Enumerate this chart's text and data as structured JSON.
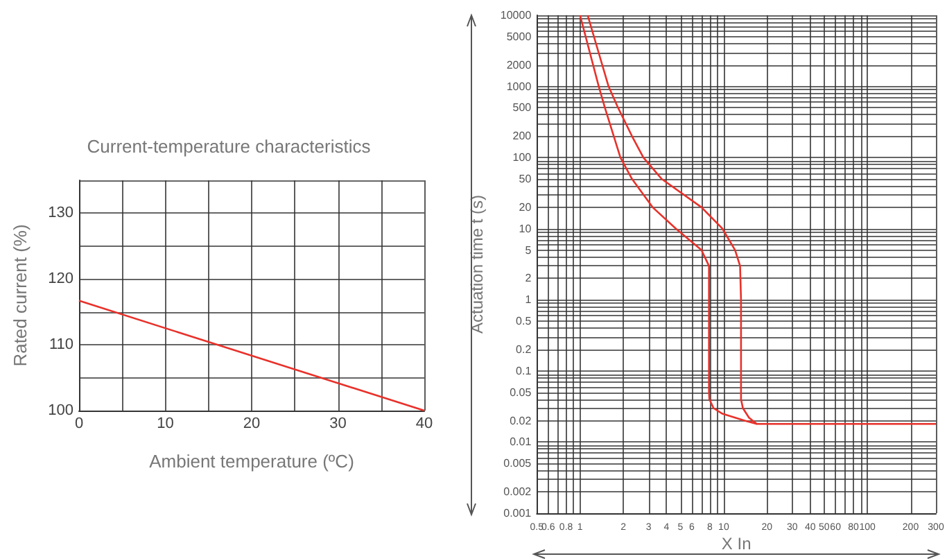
{
  "chart_data": [
    {
      "type": "line",
      "title": "Current-temperature characteristics",
      "xlabel": "Ambient temperature (ºC)",
      "ylabel": "Rated current (%)",
      "series": [
        {
          "color": "#e8312a",
          "x": [
            0,
            40
          ],
          "values": [
            116.7,
            100
          ]
        }
      ],
      "xlim": [
        0,
        40
      ],
      "xticks": [
        0,
        {
          "value": 5,
          "label": null
        },
        10,
        {
          "value": 15,
          "label": null
        },
        20,
        {
          "value": 25,
          "label": null
        },
        30,
        {
          "value": 35,
          "label": null
        },
        40
      ],
      "ylim": [
        100,
        135
      ],
      "yticks": [
        100,
        {
          "value": 105,
          "label": null
        },
        110,
        {
          "value": 115,
          "label": null
        },
        120,
        {
          "value": 125,
          "label": null
        },
        130,
        {
          "value": 135,
          "label": null
        }
      ],
      "grid": true
    },
    {
      "type": "line",
      "xlabel": "X In",
      "ylabel": "Actuation time t (s)",
      "log": "xy",
      "series": [
        {
          "color": "#e8312a",
          "x": [
            1.0,
            1.35,
            1.49,
            1.91,
            2.3,
            3.2,
            4.65,
            7.0,
            7.9,
            7.9,
            7.95,
            8.5,
            9.8,
            14,
            17
          ],
          "values": [
            10000,
            1000,
            500,
            100,
            50,
            20,
            10,
            5,
            3,
            0.05,
            0.04,
            0.03,
            0.025,
            0.02,
            0.018
          ]
        },
        {
          "color": "#e8312a",
          "x": [
            1.13,
            1.58,
            1.84,
            2.3,
            2.76,
            3.7,
            7.0,
            9.8,
            12.0,
            13.0,
            13.2,
            13.2,
            13.6,
            15,
            17,
            300
          ],
          "values": [
            10000,
            1000,
            500,
            200,
            100,
            50,
            20,
            10,
            5,
            3,
            1,
            0.04,
            0.03,
            0.022,
            0.018,
            0.018
          ]
        }
      ],
      "xlim": [
        0.5,
        300
      ],
      "xticks": [
        0.5,
        0.6,
        {
          "value": 0.7,
          "label": null
        },
        0.8,
        {
          "value": 0.9,
          "label": null
        },
        1,
        2,
        3,
        4,
        5,
        6,
        {
          "value": 7,
          "label": null
        },
        8,
        {
          "value": 9,
          "label": null
        },
        10,
        20,
        30,
        40,
        50,
        60,
        {
          "value": 70,
          "label": null
        },
        80,
        {
          "value": 90,
          "label": null
        },
        100,
        200,
        300
      ],
      "ylim": [
        0.001,
        10000
      ],
      "yticks": [
        0.001,
        0.002,
        {
          "value": 0.003,
          "label": null
        },
        {
          "value": 0.004,
          "label": null
        },
        0.005,
        {
          "value": 0.006,
          "label": null
        },
        {
          "value": 0.007,
          "label": null
        },
        {
          "value": 0.008,
          "label": null
        },
        {
          "value": 0.009,
          "label": null
        },
        0.01,
        0.02,
        {
          "value": 0.03,
          "label": null
        },
        {
          "value": 0.04,
          "label": null
        },
        0.05,
        {
          "value": 0.06,
          "label": null
        },
        {
          "value": 0.07,
          "label": null
        },
        {
          "value": 0.08,
          "label": null
        },
        {
          "value": 0.09,
          "label": null
        },
        0.1,
        0.2,
        {
          "value": 0.3,
          "label": null
        },
        {
          "value": 0.4,
          "label": null
        },
        0.5,
        {
          "value": 0.6,
          "label": null
        },
        {
          "value": 0.7,
          "label": null
        },
        {
          "value": 0.8,
          "label": null
        },
        {
          "value": 0.9,
          "label": null
        },
        1,
        2,
        {
          "value": 3,
          "label": null
        },
        {
          "value": 4,
          "label": null
        },
        5,
        {
          "value": 6,
          "label": null
        },
        {
          "value": 7,
          "label": null
        },
        {
          "value": 8,
          "label": null
        },
        {
          "value": 9,
          "label": null
        },
        10,
        20,
        {
          "value": 30,
          "label": null
        },
        {
          "value": 40,
          "label": null
        },
        50,
        {
          "value": 60,
          "label": null
        },
        {
          "value": 70,
          "label": null
        },
        {
          "value": 80,
          "label": null
        },
        {
          "value": 90,
          "label": null
        },
        100,
        200,
        {
          "value": 300,
          "label": null
        },
        {
          "value": 400,
          "label": null
        },
        500,
        {
          "value": 600,
          "label": null
        },
        {
          "value": 700,
          "label": null
        },
        {
          "value": 800,
          "label": null
        },
        {
          "value": 900,
          "label": null
        },
        1000,
        2000,
        {
          "value": 3000,
          "label": null
        },
        {
          "value": 4000,
          "label": null
        },
        5000,
        {
          "value": 6000,
          "label": null
        },
        {
          "value": 7000,
          "label": null
        },
        {
          "value": 8000,
          "label": null
        },
        {
          "value": 9000,
          "label": null
        },
        10000
      ],
      "grid": true
    }
  ]
}
